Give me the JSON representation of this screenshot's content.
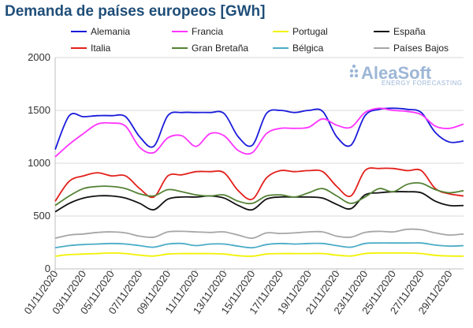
{
  "chart_data": {
    "type": "line",
    "title": "Demanda de países europeos [GWh]",
    "xlabel": "",
    "ylabel": "",
    "ylim": [
      0,
      2000
    ],
    "yticks": [
      "0",
      "500",
      "1000",
      "1500",
      "2000"
    ],
    "x": [
      "01/11/2020",
      "02/11/2020",
      "03/11/2020",
      "04/11/2020",
      "05/11/2020",
      "06/11/2020",
      "07/11/2020",
      "08/11/2020",
      "09/11/2020",
      "10/11/2020",
      "11/11/2020",
      "12/11/2020",
      "13/11/2020",
      "14/11/2020",
      "15/11/2020",
      "16/11/2020",
      "17/11/2020",
      "18/11/2020",
      "19/11/2020",
      "20/11/2020",
      "21/11/2020",
      "22/11/2020",
      "23/11/2020",
      "24/11/2020",
      "25/11/2020",
      "26/11/2020",
      "27/11/2020",
      "28/11/2020",
      "29/11/2020",
      "30/11/2020"
    ],
    "xtick_labels": [
      "01/11/2020",
      "03/11/2020",
      "05/11/2020",
      "07/11/2020",
      "09/11/2020",
      "11/11/2020",
      "13/11/2020",
      "15/11/2020",
      "17/11/2020",
      "19/11/2020",
      "21/11/2020",
      "23/11/2020",
      "25/11/2020",
      "27/11/2020",
      "29/11/2020"
    ],
    "grid": true,
    "legend_position": "top",
    "series": [
      {
        "name": "Alemania",
        "color": "#1a1adb",
        "values": [
          1130,
          1450,
          1440,
          1450,
          1450,
          1440,
          1250,
          1160,
          1450,
          1480,
          1480,
          1480,
          1470,
          1250,
          1170,
          1470,
          1500,
          1480,
          1500,
          1490,
          1250,
          1170,
          1450,
          1510,
          1520,
          1510,
          1480,
          1290,
          1200,
          1210
        ]
      },
      {
        "name": "Francia",
        "color": "#ff33ff",
        "values": [
          1060,
          1180,
          1280,
          1370,
          1380,
          1350,
          1150,
          1100,
          1240,
          1260,
          1160,
          1280,
          1260,
          1120,
          1100,
          1280,
          1330,
          1330,
          1340,
          1420,
          1360,
          1340,
          1480,
          1520,
          1500,
          1490,
          1460,
          1350,
          1330,
          1370
        ]
      },
      {
        "name": "Portugal",
        "color": "#f2f200",
        "values": [
          120,
          135,
          140,
          145,
          150,
          145,
          130,
          122,
          140,
          145,
          145,
          145,
          140,
          125,
          120,
          140,
          145,
          145,
          145,
          145,
          130,
          122,
          145,
          150,
          150,
          150,
          145,
          128,
          122,
          120
        ]
      },
      {
        "name": "España",
        "color": "#111111",
        "values": [
          540,
          620,
          670,
          690,
          690,
          670,
          620,
          560,
          660,
          680,
          680,
          690,
          670,
          600,
          560,
          660,
          680,
          680,
          680,
          670,
          610,
          570,
          700,
          720,
          730,
          730,
          720,
          640,
          600,
          600
        ]
      },
      {
        "name": "Italia",
        "color": "#e3201b",
        "values": [
          640,
          830,
          880,
          910,
          880,
          880,
          760,
          680,
          880,
          890,
          920,
          920,
          910,
          740,
          660,
          860,
          930,
          920,
          930,
          920,
          780,
          690,
          930,
          950,
          950,
          930,
          930,
          760,
          710,
          690
        ]
      },
      {
        "name": "Gran Bretaña",
        "color": "#548235",
        "values": [
          600,
          690,
          760,
          780,
          780,
          760,
          710,
          690,
          750,
          730,
          700,
          690,
          700,
          640,
          620,
          690,
          700,
          680,
          720,
          760,
          690,
          620,
          680,
          760,
          730,
          800,
          810,
          750,
          720,
          740
        ]
      },
      {
        "name": "Bélgica",
        "color": "#4bacc6",
        "values": [
          200,
          220,
          230,
          235,
          240,
          235,
          220,
          205,
          235,
          240,
          220,
          235,
          235,
          215,
          200,
          230,
          240,
          235,
          240,
          240,
          220,
          205,
          240,
          245,
          245,
          245,
          245,
          225,
          215,
          220
        ]
      },
      {
        "name": "Países Bajos",
        "color": "#a6a6a6",
        "values": [
          290,
          320,
          330,
          345,
          350,
          340,
          310,
          300,
          350,
          355,
          350,
          345,
          350,
          320,
          290,
          340,
          335,
          340,
          350,
          350,
          310,
          300,
          345,
          355,
          350,
          375,
          370,
          340,
          320,
          330
        ]
      }
    ]
  },
  "watermark": {
    "main": "AleaSoft",
    "sub": "ENERGY FORECASTING"
  }
}
